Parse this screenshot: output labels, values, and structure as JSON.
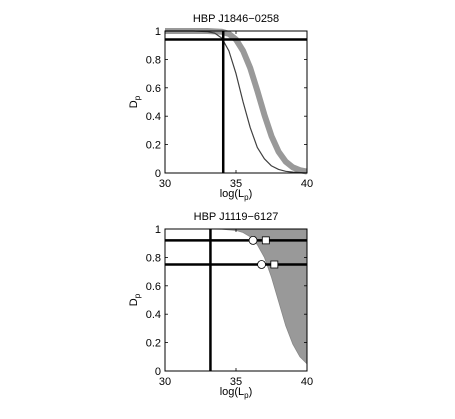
{
  "chart_data": [
    {
      "type": "line",
      "title": "HBP J1846−0258",
      "xlabel_main": "log(L",
      "xlabel_sub": "p",
      "ylabel_main": "D",
      "ylabel_sub": "p",
      "xlim": [
        30,
        40
      ],
      "ylim": [
        0,
        1
      ],
      "xticks": [
        "30",
        "35",
        "40"
      ],
      "yticks": [
        "0",
        "0.2",
        "0.4",
        "0.6",
        "0.8",
        "1"
      ],
      "xtick_values": [
        30,
        35,
        40
      ],
      "ytick_values": [
        0,
        0.2,
        0.4,
        0.6,
        0.8,
        1
      ],
      "series": [
        {
          "style": "thick-gray-band",
          "color": "#999999",
          "x": [
            30,
            32,
            33,
            34,
            34.5,
            35,
            35.5,
            36,
            36.5,
            37,
            37.5,
            38,
            38.5,
            39,
            39.5,
            40
          ],
          "y": [
            1.0,
            1.0,
            1.0,
            0.995,
            0.98,
            0.94,
            0.86,
            0.74,
            0.58,
            0.41,
            0.26,
            0.15,
            0.08,
            0.04,
            0.02,
            0.01
          ]
        },
        {
          "style": "thin-line",
          "color": "#404040",
          "x": [
            30,
            32,
            33,
            33.5,
            34,
            34.5,
            35,
            35.5,
            36,
            36.5,
            37,
            37.5,
            38,
            38.5,
            39,
            40
          ],
          "y": [
            1.0,
            1.0,
            0.995,
            0.985,
            0.95,
            0.86,
            0.7,
            0.5,
            0.32,
            0.18,
            0.1,
            0.05,
            0.025,
            0.012,
            0.006,
            0.0
          ]
        }
      ],
      "hlines": [
        0.94
      ],
      "vlines": [
        34.1
      ],
      "markers": []
    },
    {
      "type": "area",
      "title": "HBP J1119−6127",
      "xlabel_main": "log(L",
      "xlabel_sub": "p",
      "ylabel_main": "D",
      "ylabel_sub": "p",
      "xlim": [
        30,
        40
      ],
      "ylim": [
        0,
        1
      ],
      "xticks": [
        "30",
        "35",
        "40"
      ],
      "yticks": [
        "0",
        "0.2",
        "0.4",
        "0.6",
        "0.8",
        "1"
      ],
      "xtick_values": [
        30,
        35,
        40
      ],
      "ytick_values": [
        0,
        0.2,
        0.4,
        0.6,
        0.8,
        1
      ],
      "fill_color": "#999999",
      "boundary": {
        "x": [
          30,
          33,
          34,
          35,
          35.5,
          36,
          36.5,
          37,
          37.5,
          38,
          38.5,
          39,
          39.5,
          40
        ],
        "y": [
          1.0,
          1.0,
          0.998,
          0.99,
          0.975,
          0.945,
          0.89,
          0.8,
          0.66,
          0.49,
          0.32,
          0.19,
          0.1,
          0.05
        ]
      },
      "hlines": [
        0.92,
        0.75
      ],
      "vlines": [
        33.2
      ],
      "markers": [
        {
          "shape": "circle",
          "x": 36.2,
          "y": 0.92
        },
        {
          "shape": "square",
          "x": 37.1,
          "y": 0.92
        },
        {
          "shape": "circle",
          "x": 36.8,
          "y": 0.75
        },
        {
          "shape": "square",
          "x": 37.7,
          "y": 0.75
        }
      ]
    }
  ]
}
